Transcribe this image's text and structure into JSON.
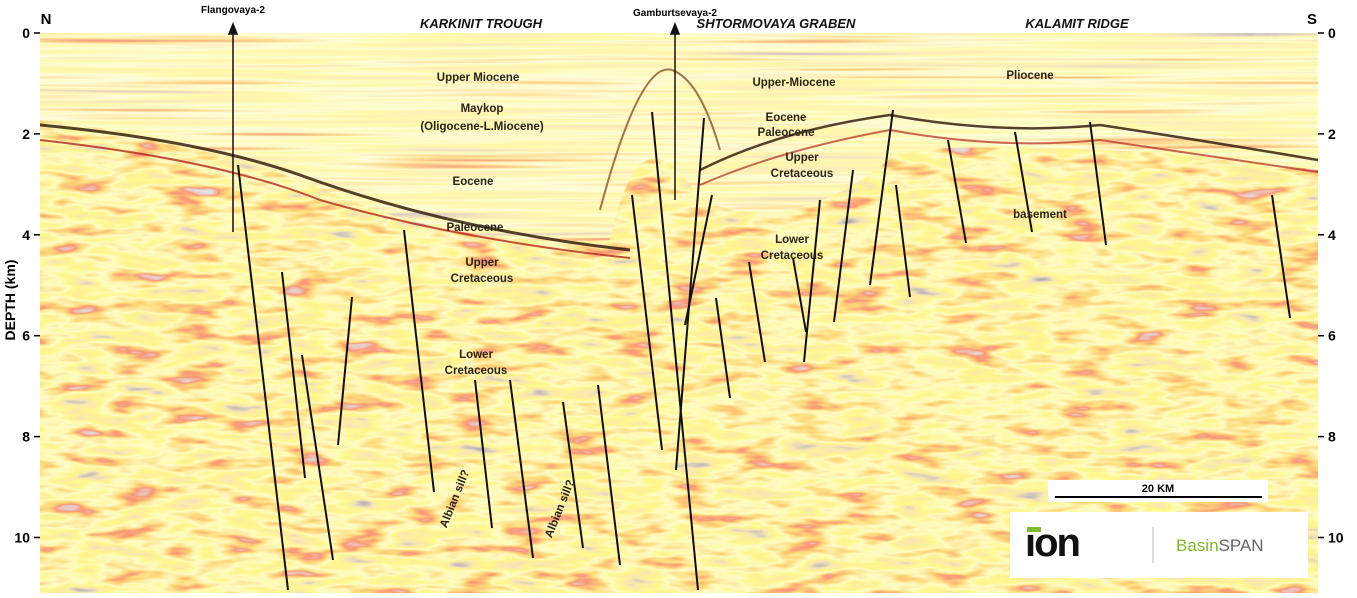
{
  "header": {
    "north": "N",
    "south": "S"
  },
  "wells": [
    "Flangovaya-2",
    "Gamburtsevaya-2"
  ],
  "regions": [
    "KARKINIT TROUGH",
    "SHTORMOVAYA GRABEN",
    "KALAMIT RIDGE"
  ],
  "formations": [
    [
      "Upper Miocene"
    ],
    [
      "Maykop",
      "(Oligocene-L.Miocene)"
    ],
    [
      "Eocene"
    ],
    [
      "Paleocene"
    ],
    [
      "Upper",
      "Cretaceous"
    ],
    [
      "Lower",
      "Cretaceous"
    ],
    [
      "Upper-Miocene"
    ],
    [
      "Eocene",
      "Paleocene"
    ],
    [
      "Upper",
      "Cretaceous"
    ],
    [
      "Lower",
      "Cretaceous"
    ],
    [
      "Pliocene"
    ],
    [
      "basement"
    ],
    [
      "Albian sill?"
    ],
    [
      "Albian sill?"
    ]
  ],
  "axis": {
    "label": "DEPTH (km)",
    "ylim": [
      0,
      11.1
    ],
    "ticks": [
      0,
      2,
      4,
      6,
      8,
      10
    ]
  },
  "scale_bar": "20 KM",
  "logo": {
    "brand": "ion",
    "product_prefix": "Basin",
    "product": "SPAN"
  }
}
